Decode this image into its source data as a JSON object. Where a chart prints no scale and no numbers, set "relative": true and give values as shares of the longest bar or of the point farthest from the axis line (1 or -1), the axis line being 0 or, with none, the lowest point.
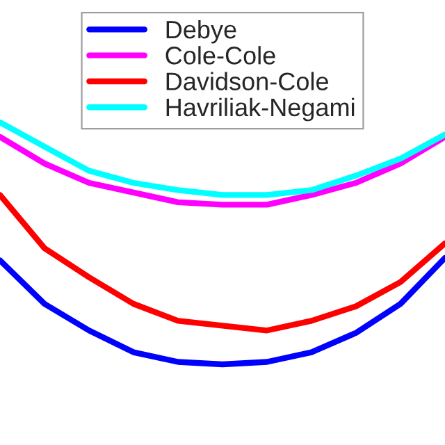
{
  "chart_data": {
    "type": "line",
    "relative": true,
    "legend": "top",
    "grid": false,
    "categories": [
      null,
      null,
      null,
      null,
      null,
      null,
      null,
      null,
      null,
      null,
      null
    ],
    "series": [
      {
        "name": "Debye",
        "color": "#0000ff",
        "values": [
          0.43,
          0.25,
          0.14,
          0.05,
          0.01,
          0,
          0.01,
          0.05,
          0.13,
          0.25,
          0.44
        ]
      },
      {
        "name": "Cole-Cole",
        "color": "#ff00ff",
        "values": [
          0.94,
          0.83,
          0.75,
          0.71,
          0.67,
          0.66,
          0.66,
          0.7,
          0.75,
          0.83,
          0.94
        ]
      },
      {
        "name": "Davidson-Cole",
        "color": "#ff0000",
        "values": [
          0.7,
          0.48,
          0.36,
          0.25,
          0.18,
          0.16,
          0.14,
          0.18,
          0.24,
          0.34,
          0.5
        ]
      },
      {
        "name": "Havriliak-Negami",
        "color": "#00ffff",
        "values": [
          1.0,
          0.9,
          0.8,
          0.75,
          0.72,
          0.7,
          0.7,
          0.72,
          0.78,
          0.85,
          0.95
        ]
      }
    ]
  }
}
